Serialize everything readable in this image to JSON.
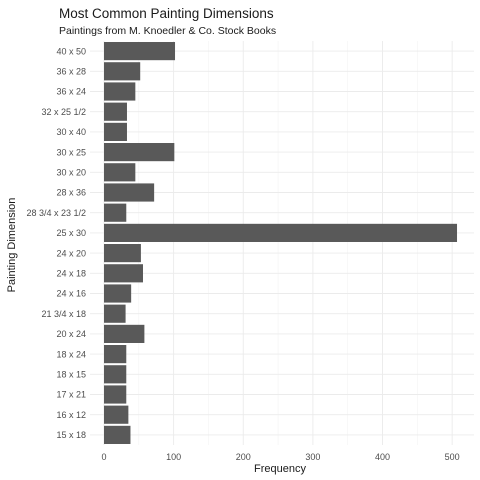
{
  "chart_data": {
    "type": "bar",
    "orientation": "horizontal",
    "title": "Most Common Painting Dimensions",
    "subtitle": "Paintings from M. Knoedler & Co. Stock Books",
    "xlabel": "Frequency",
    "ylabel": "Painting Dimension",
    "xlim": [
      0,
      510
    ],
    "x_ticks": [
      0,
      100,
      200,
      300,
      400,
      500
    ],
    "grid": true,
    "bar_color": "#595959",
    "categories": [
      "40 x 50",
      "36 x 28",
      "36 x 24",
      "32 x 25 1/2",
      "30 x 40",
      "30 x 25",
      "30 x 20",
      "28 x 36",
      "28 3/4 x 23 1/2",
      "25 x 30",
      "24 x 20",
      "24 x 18",
      "24 x 16",
      "21 3/4 x 18",
      "20 x 24",
      "18 x 24",
      "18 x 15",
      "17 x 21",
      "16 x 12",
      "15 x 18"
    ],
    "values": [
      102,
      52,
      45,
      33,
      33,
      101,
      45,
      72,
      32,
      507,
      53,
      56,
      39,
      31,
      58,
      32,
      32,
      32,
      35,
      38
    ]
  }
}
